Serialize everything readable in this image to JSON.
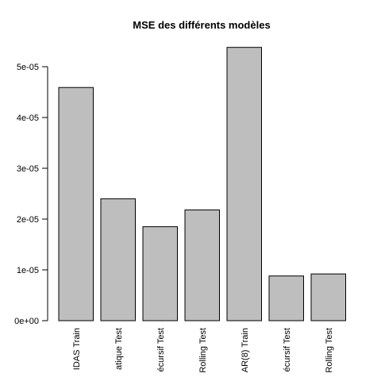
{
  "chart_data": {
    "type": "bar",
    "title": "MSE des différents modèles",
    "xlabel": "",
    "ylabel": "",
    "categories": [
      "IDAS Train",
      "atique Test",
      "écursif Test",
      "Rolling Test",
      "AR(8) Train",
      "écursif Test",
      "Rolling Test"
    ],
    "values": [
      4.59e-05,
      2.4e-05,
      1.85e-05,
      2.18e-05,
      5.38e-05,
      8.8e-06,
      9.2e-06
    ],
    "ylim": [
      0,
      5e-05
    ],
    "yticks": [
      0,
      1e-05,
      2e-05,
      3e-05,
      4e-05,
      5e-05
    ],
    "ytick_labels": [
      "0e+00",
      "1e-05",
      "2e-05",
      "3e-05",
      "4e-05",
      "5e-05"
    ],
    "bar_color": "#bebebe",
    "grid": false,
    "legend": "none"
  }
}
